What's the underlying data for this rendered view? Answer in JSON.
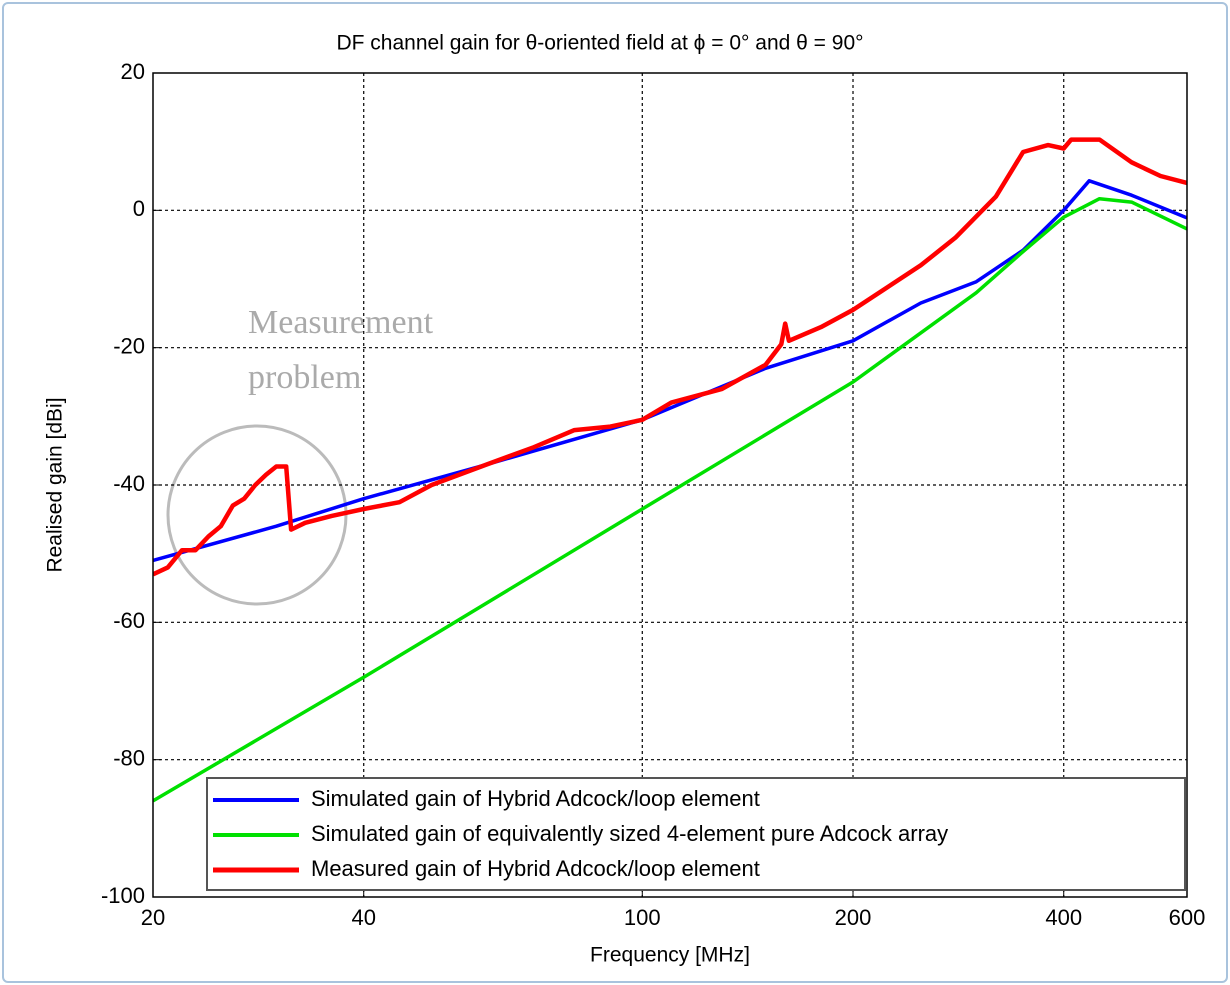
{
  "chart_data": {
    "type": "line",
    "title": "DF channel gain for θ-oriented field at ϕ = 0° and θ = 90°",
    "x_label": "Frequency [MHz]",
    "y_label": "Realised gain [dBi]",
    "xscale": "log",
    "xlim": [
      20,
      600
    ],
    "ylim": [
      -100,
      20
    ],
    "xticks": [
      20,
      40,
      100,
      200,
      400,
      600
    ],
    "yticks": [
      -100,
      -80,
      -60,
      -40,
      -20,
      0,
      20
    ],
    "grid": true,
    "annotation": [
      "Measurement",
      "problem"
    ],
    "series": [
      {
        "name": "Simulated gain of Hybrid Adcock/loop element",
        "color": "#0000ff",
        "x": [
          20,
          30,
          40,
          60,
          100,
          150,
          200,
          250,
          300,
          350,
          400,
          435,
          500,
          600
        ],
        "values": [
          -51,
          -46,
          -42,
          -37,
          -30.5,
          -23,
          -19,
          -13.5,
          -10.4,
          -5.8,
          0,
          4.3,
          2.2,
          -1.1
        ]
      },
      {
        "name": "Simulated gain of equivalently sized 4-element pure Adcock array",
        "color": "#00e000",
        "x": [
          20,
          40,
          100,
          200,
          300,
          350,
          400,
          450,
          500,
          600
        ],
        "values": [
          -86,
          -68,
          -43.5,
          -25,
          -12,
          -6,
          -1,
          1.7,
          1.2,
          -2.7
        ]
      },
      {
        "name": "Measured gain of Hybrid Adcock/loop element",
        "color": "#ff0000",
        "x": [
          20,
          21,
          22,
          23,
          24,
          25,
          26,
          27,
          28,
          29,
          30,
          31,
          31.5,
          33,
          36,
          40,
          45,
          50,
          60,
          70,
          80,
          90,
          100,
          110,
          130,
          150,
          158,
          160,
          162,
          180,
          200,
          250,
          280,
          320,
          350,
          380,
          400,
          410,
          450,
          500,
          550,
          600
        ],
        "values": [
          -53,
          -52,
          -49.5,
          -49.5,
          -47.5,
          -46,
          -43,
          -42,
          -40,
          -38.5,
          -37.3,
          -37.3,
          -46.5,
          -45.5,
          -44.5,
          -43.5,
          -42.5,
          -40,
          -37,
          -34.5,
          -32,
          -31.5,
          -30.5,
          -28,
          -26,
          -22.5,
          -19.5,
          -16.5,
          -19,
          -17,
          -14.5,
          -8,
          -4,
          2,
          8.5,
          9.5,
          9,
          10.3,
          10.3,
          7,
          5,
          4
        ]
      }
    ]
  }
}
